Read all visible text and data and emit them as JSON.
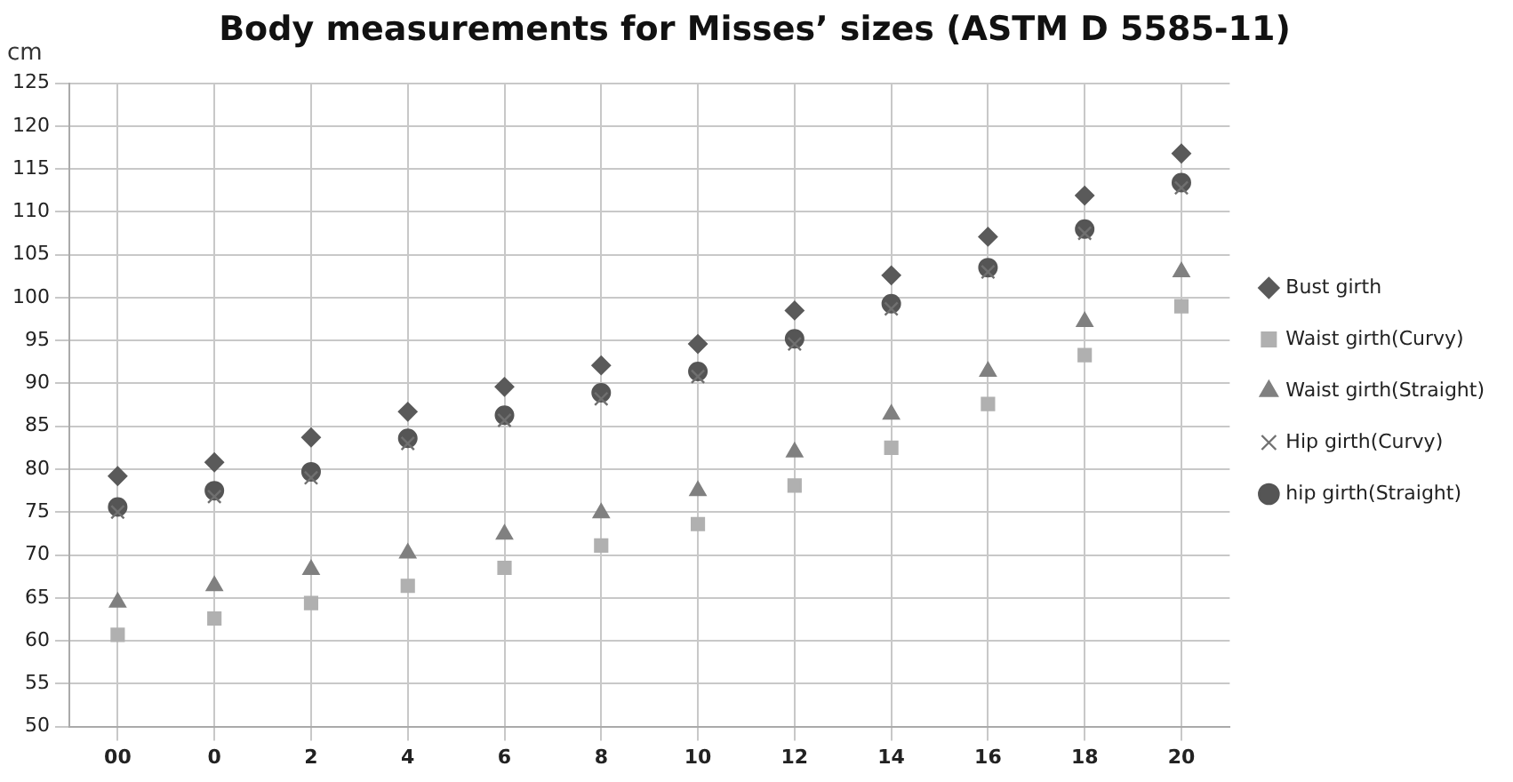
{
  "chart_data": {
    "type": "scatter",
    "title": "Body measurements for Misses’ sizes (ASTM D 5585-11)",
    "ylabel": "cm",
    "categories": [
      "00",
      "0",
      "2",
      "4",
      "6",
      "8",
      "10",
      "12",
      "14",
      "16",
      "18",
      "20"
    ],
    "series": [
      {
        "name": "Bust girth",
        "color": "#5a5a5a",
        "marker": "diamond",
        "values": [
          79.2,
          80.8,
          83.7,
          86.7,
          89.6,
          92.1,
          94.6,
          98.5,
          102.6,
          107.1,
          111.9,
          116.8
        ]
      },
      {
        "name": "Waist girth(Curvy)",
        "color": "#b0b0b0",
        "marker": "square",
        "values": [
          60.7,
          62.6,
          64.4,
          66.4,
          68.5,
          71.1,
          73.6,
          78.1,
          82.5,
          87.6,
          93.3,
          99.0
        ]
      },
      {
        "name": "Waist girth(Straight)",
        "color": "#808080",
        "marker": "triangle",
        "values": [
          64.5,
          66.4,
          68.3,
          70.2,
          72.4,
          74.9,
          77.5,
          82.0,
          86.4,
          91.4,
          97.2,
          103.0
        ]
      },
      {
        "name": "Hip girth(Curvy)",
        "color": "#707070",
        "marker": "cross",
        "values": [
          75.0,
          76.8,
          79.0,
          83.0,
          85.7,
          88.2,
          90.8,
          94.6,
          98.7,
          103.0,
          107.5,
          112.8
        ]
      },
      {
        "name": "hip girth(Straight)",
        "color": "#555555",
        "marker": "circle",
        "values": [
          75.6,
          77.5,
          79.7,
          83.6,
          86.3,
          88.9,
          91.4,
          95.2,
          99.3,
          103.5,
          108.0,
          113.4
        ]
      }
    ],
    "ylim": [
      50,
      125
    ],
    "yticks": [
      50,
      55,
      60,
      65,
      70,
      75,
      80,
      85,
      90,
      95,
      100,
      105,
      110,
      115,
      120,
      125
    ],
    "grid": true,
    "legend": "right"
  }
}
